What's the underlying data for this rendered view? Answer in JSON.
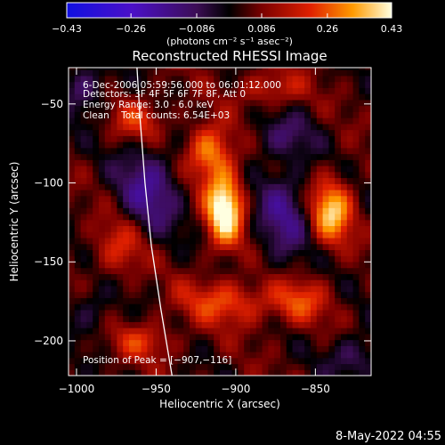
{
  "chart_data": {
    "type": "heatmap",
    "title": "Reconstructed RHESSI Image",
    "xlabel": "Heliocentric X (arcsec)",
    "ylabel": "Heliocentric Y (arcsec)",
    "xlim": [
      -1005,
      -815
    ],
    "ylim": [
      -222,
      -27
    ],
    "x_ticks": [
      -1000,
      -950,
      -900,
      -850
    ],
    "x_tick_labels": [
      "−1000",
      "−950",
      "−900",
      "−850"
    ],
    "y_ticks": [
      -50,
      -100,
      -150,
      -200
    ],
    "y_tick_labels": [
      "−50",
      "−100",
      "−150",
      "−200"
    ],
    "colorbar": {
      "range": [
        -0.43,
        0.43
      ],
      "tick_labels": [
        "−0.43",
        "−0.26",
        "−0.086",
        "0.086",
        "0.26",
        "0.43"
      ],
      "tick_values": [
        -0.43,
        -0.26,
        -0.086,
        0.086,
        0.26,
        0.43
      ],
      "units": "(photons cm⁻² s⁻¹ asec⁻²)"
    },
    "annotations": [
      "6-Dec-2006 05:59:56.000 to 06:01:12.000",
      "Detectors: 3F 4F 5F 6F 7F 8F, Att 0",
      "Energy Range: 3.0 - 6.0 keV",
      "Clean    Total counts: 6.54E+03"
    ],
    "peak_label": "Position of Peak = [−907,−116]",
    "peak": {
      "x": -907,
      "y": -116,
      "value": 0.43
    },
    "sources": [
      {
        "x": -907,
        "y": -116,
        "value": 0.43,
        "sx": 8,
        "sy": 16
      },
      {
        "x": -917,
        "y": -80,
        "value": 0.26,
        "sx": 10,
        "sy": 12
      },
      {
        "x": -840,
        "y": -118,
        "value": 0.32,
        "sx": 9,
        "sy": 14
      },
      {
        "x": -960,
        "y": -60,
        "value": 0.16,
        "sx": 12,
        "sy": 10
      },
      {
        "x": -972,
        "y": -140,
        "value": 0.16,
        "sx": 12,
        "sy": 14
      },
      {
        "x": -905,
        "y": -175,
        "value": 0.18,
        "sx": 22,
        "sy": 10
      },
      {
        "x": -860,
        "y": -175,
        "value": 0.16,
        "sx": 12,
        "sy": 10
      },
      {
        "x": -958,
        "y": -200,
        "value": 0.14,
        "sx": 14,
        "sy": 8
      },
      {
        "x": -878,
        "y": -40,
        "value": 0.14,
        "sx": 14,
        "sy": 8
      }
    ],
    "negative_regions": [
      {
        "x": -955,
        "y": -105,
        "value": -0.2,
        "sx": 14,
        "sy": 22
      },
      {
        "x": -870,
        "y": -120,
        "value": -0.18,
        "sx": 12,
        "sy": 22
      },
      {
        "x": -870,
        "y": -70,
        "value": -0.12,
        "sx": 14,
        "sy": 10
      },
      {
        "x": -995,
        "y": -40,
        "value": -0.15,
        "sx": 10,
        "sy": 12
      },
      {
        "x": -825,
        "y": -210,
        "value": -0.14,
        "sx": 12,
        "sy": 10
      },
      {
        "x": -990,
        "y": -180,
        "value": -0.1,
        "sx": 10,
        "sy": 12
      }
    ],
    "limb_curve": [
      {
        "x": -962,
        "y": -27
      },
      {
        "x": -960,
        "y": -60
      },
      {
        "x": -957,
        "y": -100
      },
      {
        "x": -953,
        "y": -140
      },
      {
        "x": -947,
        "y": -180
      },
      {
        "x": -940,
        "y": -222
      }
    ]
  },
  "footer": {
    "timestamp": "8-May-2022 04:55"
  }
}
